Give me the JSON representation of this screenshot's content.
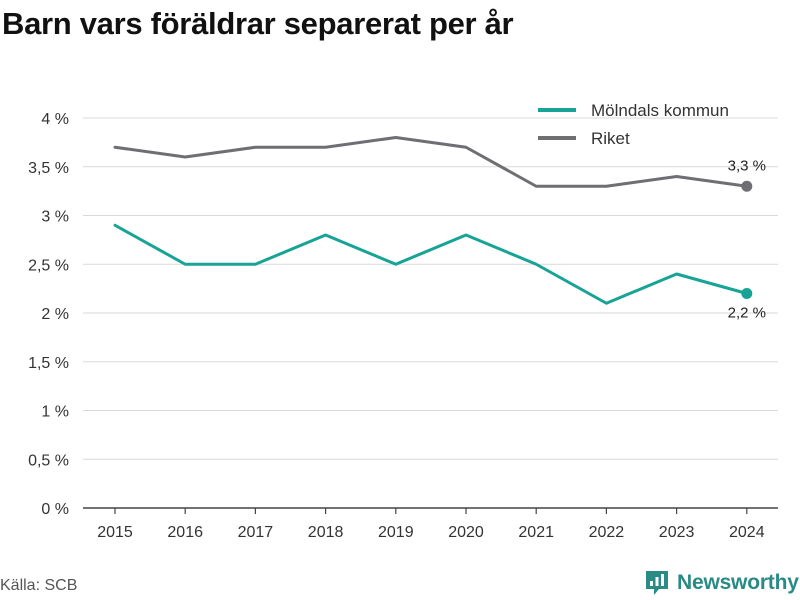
{
  "title": "Barn vars föräldrar separerat per år",
  "source": "Källa: SCB",
  "brand": {
    "name": "Newsworthy",
    "icon": "newsworthy-logo-icon",
    "color": "#2a8a86"
  },
  "chart_data": {
    "type": "line",
    "title": "Barn vars föräldrar separerat per år",
    "xlabel": "",
    "ylabel": "",
    "x": [
      "2015",
      "2016",
      "2017",
      "2018",
      "2019",
      "2020",
      "2021",
      "2022",
      "2023",
      "2024"
    ],
    "ylim": [
      0,
      4
    ],
    "yticks": [
      0,
      0.5,
      1,
      1.5,
      2,
      2.5,
      3,
      3.5,
      4
    ],
    "ytick_labels": [
      "0 %",
      "0,5 %",
      "1 %",
      "1,5 %",
      "2 %",
      "2,5 %",
      "3 %",
      "3,5 %",
      "4 %"
    ],
    "grid": "horizontal",
    "legend_position": "top-right",
    "series": [
      {
        "name": "Mölndals kommun",
        "color": "#17a396",
        "values": [
          2.9,
          2.5,
          2.5,
          2.8,
          2.5,
          2.8,
          2.5,
          2.1,
          2.4,
          2.2
        ],
        "end_label": "2,2 %"
      },
      {
        "name": "Riket",
        "color": "#6e6e73",
        "values": [
          3.7,
          3.6,
          3.7,
          3.7,
          3.8,
          3.7,
          3.3,
          3.3,
          3.4,
          3.3
        ],
        "end_label": "3,3 %"
      }
    ]
  }
}
